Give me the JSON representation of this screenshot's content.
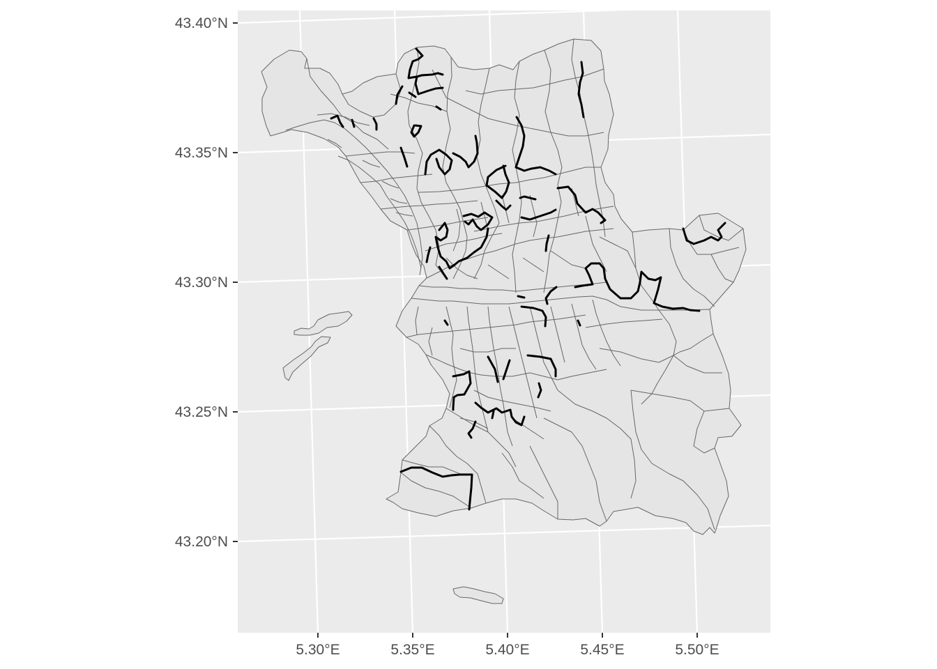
{
  "map": {
    "panel_background": "#ebebeb",
    "grid_color": "#ffffff",
    "district_fill": "#e5e5e5",
    "district_stroke": "#666666",
    "route_color": "#000000",
    "y_axis": {
      "ticks": [
        {
          "value": 43.4,
          "label": "43.40°N"
        },
        {
          "value": 43.35,
          "label": "43.35°N"
        },
        {
          "value": 43.3,
          "label": "43.30°N"
        },
        {
          "value": 43.25,
          "label": "43.25°N"
        },
        {
          "value": 43.2,
          "label": "43.20°N"
        }
      ]
    },
    "x_axis": {
      "ticks": [
        {
          "value": 5.3,
          "label": "5.30°E"
        },
        {
          "value": 5.35,
          "label": "5.35°E"
        },
        {
          "value": 5.4,
          "label": "5.40°E"
        },
        {
          "value": 5.45,
          "label": "5.45°E"
        },
        {
          "value": 5.5,
          "label": "5.50°E"
        }
      ]
    }
  }
}
